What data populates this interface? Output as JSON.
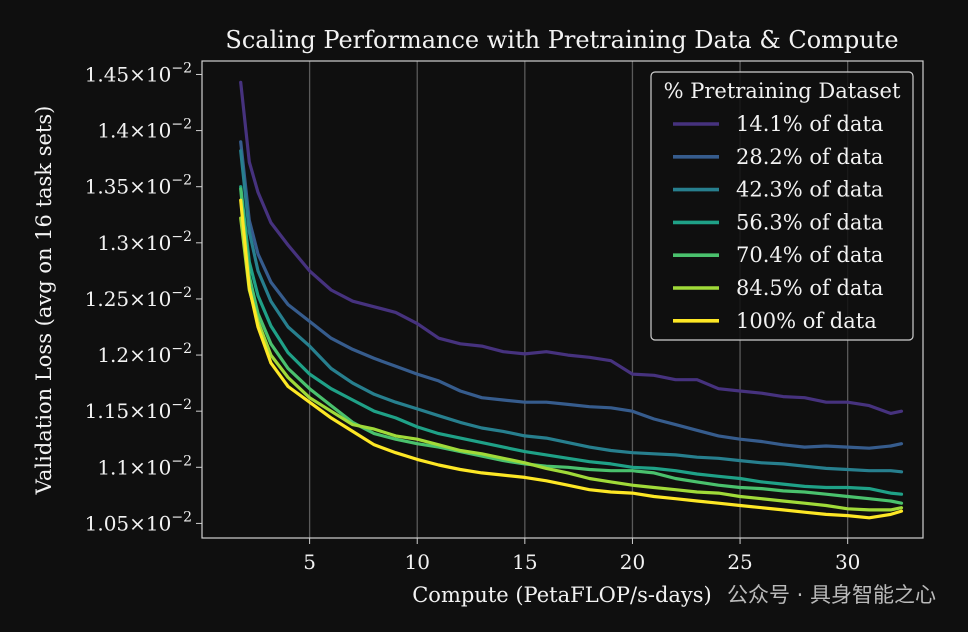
{
  "chart_data": {
    "type": "line",
    "title": "Scaling Performance with Pretraining Data & Compute",
    "xlabel": "Compute (PetaFLOP/s-days)",
    "ylabel": "Validation Loss (avg on 16 task sets)",
    "xlim": [
      0,
      33.5
    ],
    "ylim": [
      0.01037,
      0.01462
    ],
    "x_ticks": [
      5,
      10,
      15,
      20,
      25,
      30
    ],
    "y_ticks": [
      {
        "value": 0.0105,
        "mantissa": "1.05"
      },
      {
        "value": 0.011,
        "mantissa": "1.1"
      },
      {
        "value": 0.0115,
        "mantissa": "1.15"
      },
      {
        "value": 0.012,
        "mantissa": "1.2"
      },
      {
        "value": 0.0125,
        "mantissa": "1.25"
      },
      {
        "value": 0.013,
        "mantissa": "1.3"
      },
      {
        "value": 0.0135,
        "mantissa": "1.35"
      },
      {
        "value": 0.014,
        "mantissa": "1.4"
      },
      {
        "value": 0.0145,
        "mantissa": "1.45"
      }
    ],
    "y_tick_suffix": "×10",
    "y_tick_exponent": "−2",
    "grid": "vertical",
    "legend_title": "% Pretraining Dataset",
    "legend_position": "top-right",
    "series": [
      {
        "name": "14.1% of data",
        "color": "#46327e",
        "x": [
          1.8,
          2.2,
          2.6,
          3.2,
          4,
          5,
          6,
          7,
          8,
          9,
          10,
          11,
          12,
          13,
          14,
          15,
          16,
          17,
          18,
          19,
          20,
          21,
          22,
          23,
          24,
          25,
          26,
          27,
          28,
          29,
          30,
          31,
          32,
          32.5
        ],
        "y": [
          0.01443,
          0.01372,
          0.01345,
          0.01318,
          0.01298,
          0.01275,
          0.01258,
          0.01248,
          0.01243,
          0.01238,
          0.01228,
          0.01215,
          0.0121,
          0.01208,
          0.01203,
          0.01201,
          0.01203,
          0.012,
          0.01198,
          0.01195,
          0.01183,
          0.01182,
          0.01178,
          0.01178,
          0.0117,
          0.01168,
          0.01166,
          0.01163,
          0.01162,
          0.01158,
          0.01158,
          0.01155,
          0.01148,
          0.0115
        ]
      },
      {
        "name": "28.2% of data",
        "color": "#365c8d",
        "x": [
          1.8,
          2.2,
          2.6,
          3.2,
          4,
          5,
          6,
          7,
          8,
          9,
          10,
          11,
          12,
          13,
          14,
          15,
          16,
          17,
          18,
          19,
          20,
          21,
          22,
          23,
          24,
          25,
          26,
          27,
          28,
          29,
          30,
          31,
          32,
          32.5
        ],
        "y": [
          0.0139,
          0.0132,
          0.0129,
          0.01265,
          0.01245,
          0.0123,
          0.01215,
          0.01205,
          0.01197,
          0.0119,
          0.01183,
          0.01177,
          0.01168,
          0.01162,
          0.0116,
          0.01158,
          0.01158,
          0.01156,
          0.01154,
          0.01153,
          0.0115,
          0.01143,
          0.01138,
          0.01133,
          0.01128,
          0.01125,
          0.01123,
          0.0112,
          0.01118,
          0.01119,
          0.01118,
          0.01117,
          0.01119,
          0.01121
        ]
      },
      {
        "name": "42.3% of data",
        "color": "#277f8e",
        "x": [
          1.8,
          2.2,
          2.6,
          3.2,
          4,
          5,
          6,
          7,
          8,
          9,
          10,
          11,
          12,
          13,
          14,
          15,
          16,
          17,
          18,
          19,
          20,
          21,
          22,
          23,
          24,
          25,
          26,
          27,
          28,
          29,
          30,
          31,
          32,
          32.5
        ],
        "y": [
          0.01382,
          0.0131,
          0.01275,
          0.01248,
          0.01225,
          0.01208,
          0.01188,
          0.01175,
          0.01165,
          0.01158,
          0.01152,
          0.01146,
          0.0114,
          0.01135,
          0.01132,
          0.01128,
          0.01126,
          0.01122,
          0.01118,
          0.01115,
          0.01113,
          0.01112,
          0.01111,
          0.01109,
          0.01108,
          0.01106,
          0.01104,
          0.01103,
          0.01101,
          0.01099,
          0.01098,
          0.01097,
          0.01097,
          0.01096
        ]
      },
      {
        "name": "56.3% of data",
        "color": "#1fa187",
        "x": [
          1.8,
          2.2,
          2.6,
          3.2,
          4,
          5,
          6,
          7,
          8,
          9,
          10,
          11,
          12,
          13,
          14,
          15,
          16,
          17,
          18,
          19,
          20,
          21,
          22,
          23,
          24,
          25,
          26,
          27,
          28,
          29,
          30,
          31,
          32,
          32.5
        ],
        "y": [
          0.0135,
          0.01283,
          0.01253,
          0.01226,
          0.01202,
          0.01183,
          0.0117,
          0.0116,
          0.0115,
          0.01144,
          0.01136,
          0.0113,
          0.01126,
          0.01122,
          0.01118,
          0.01114,
          0.01111,
          0.01108,
          0.01105,
          0.01103,
          0.011,
          0.01099,
          0.01097,
          0.01094,
          0.01092,
          0.0109,
          0.01087,
          0.01085,
          0.01083,
          0.01082,
          0.01082,
          0.01081,
          0.01077,
          0.01076
        ]
      },
      {
        "name": "70.4% of data",
        "color": "#4ac16d",
        "x": [
          1.8,
          2.2,
          2.6,
          3.2,
          4,
          5,
          6,
          7,
          8,
          9,
          10,
          11,
          12,
          13,
          14,
          15,
          16,
          17,
          18,
          19,
          20,
          21,
          22,
          23,
          24,
          25,
          26,
          27,
          28,
          29,
          30,
          31,
          32,
          32.5
        ],
        "y": [
          0.01348,
          0.0127,
          0.01237,
          0.0121,
          0.01188,
          0.0117,
          0.01155,
          0.0114,
          0.0113,
          0.01125,
          0.01121,
          0.01118,
          0.01114,
          0.0111,
          0.01106,
          0.01103,
          0.01101,
          0.011,
          0.01098,
          0.01097,
          0.01097,
          0.01095,
          0.0109,
          0.01087,
          0.01084,
          0.01082,
          0.01081,
          0.01079,
          0.01078,
          0.01076,
          0.01074,
          0.01072,
          0.0107,
          0.01068
        ]
      },
      {
        "name": "84.5% of data",
        "color": "#a0da39",
        "x": [
          1.8,
          2.2,
          2.6,
          3.2,
          4,
          5,
          6,
          7,
          8,
          9,
          10,
          11,
          12,
          13,
          14,
          15,
          16,
          17,
          18,
          19,
          20,
          21,
          22,
          23,
          24,
          25,
          26,
          27,
          28,
          29,
          30,
          31,
          32,
          32.5
        ],
        "y": [
          0.01322,
          0.01258,
          0.0123,
          0.012,
          0.0118,
          0.01162,
          0.0115,
          0.01138,
          0.01134,
          0.01128,
          0.01125,
          0.0112,
          0.01115,
          0.01112,
          0.01108,
          0.01104,
          0.01099,
          0.01095,
          0.0109,
          0.01087,
          0.01084,
          0.01082,
          0.0108,
          0.01078,
          0.01077,
          0.01074,
          0.01072,
          0.0107,
          0.01068,
          0.01066,
          0.01063,
          0.01062,
          0.01062,
          0.01064
        ]
      },
      {
        "name": "100% of data",
        "color": "#fde725",
        "x": [
          1.8,
          2.2,
          2.6,
          3.2,
          4,
          5,
          6,
          7,
          8,
          9,
          10,
          11,
          12,
          13,
          14,
          15,
          16,
          17,
          18,
          19,
          20,
          21,
          22,
          23,
          24,
          25,
          26,
          27,
          28,
          29,
          30,
          31,
          32,
          32.5
        ],
        "y": [
          0.01338,
          0.0126,
          0.01225,
          0.01193,
          0.01172,
          0.01158,
          0.01144,
          0.01132,
          0.0112,
          0.01113,
          0.01107,
          0.01102,
          0.01098,
          0.01095,
          0.01093,
          0.01091,
          0.01088,
          0.01084,
          0.0108,
          0.01078,
          0.01077,
          0.01074,
          0.01072,
          0.0107,
          0.01068,
          0.01066,
          0.01064,
          0.01062,
          0.0106,
          0.01058,
          0.01057,
          0.01055,
          0.01058,
          0.01061
        ]
      }
    ]
  },
  "watermark": "公众号 · 具身智能之心"
}
